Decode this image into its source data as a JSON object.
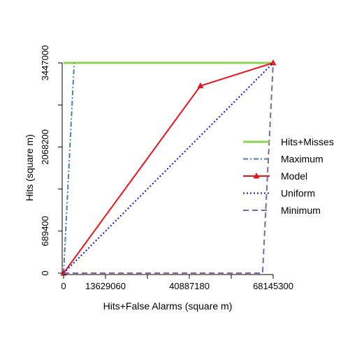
{
  "chart_data": {
    "type": "line",
    "title": "",
    "xlabel": "Hits+False Alarms (square m)",
    "ylabel": "Hits (square m)",
    "xlim": [
      0,
      68145300
    ],
    "ylim": [
      0,
      3447000
    ],
    "x_ticks": [
      0,
      13629060,
      40887180,
      68145300
    ],
    "x_tick_labels": [
      "0",
      "13629060",
      "40887180",
      "68145300"
    ],
    "x_tick_minor": [
      27258120,
      54516240
    ],
    "y_ticks": [
      0,
      689400,
      2068200,
      3447000
    ],
    "y_tick_labels": [
      "0",
      "689400",
      "2068200",
      "3447000"
    ],
    "y_tick_minor": [
      1378800,
      2757600
    ],
    "grid": false,
    "legend_position": "right",
    "series": [
      {
        "name": "Hits+Misses",
        "color": "#8fd14f",
        "style": "solid",
        "marker": "none",
        "points": [
          [
            0,
            3447000
          ],
          [
            68145300,
            3447000
          ]
        ]
      },
      {
        "name": "Maximum",
        "color": "#4a7fb5",
        "style": "dashdot",
        "marker": "none",
        "points": [
          [
            0,
            0
          ],
          [
            3447000,
            3447000
          ]
        ]
      },
      {
        "name": "Model",
        "color": "#e8141c",
        "style": "solid",
        "marker": "triangle",
        "points": [
          [
            0,
            0
          ],
          [
            44500000,
            3070000
          ],
          [
            68145300,
            3447000
          ]
        ]
      },
      {
        "name": "Uniform",
        "color": "#1010e0",
        "style": "dotted",
        "marker": "none",
        "points": [
          [
            0,
            0
          ],
          [
            68145300,
            3447000
          ]
        ]
      },
      {
        "name": "Minimum",
        "color": "#8064a2",
        "style": "dashed",
        "marker": "none",
        "points": [
          [
            0,
            0
          ],
          [
            64698300,
            0
          ],
          [
            68145300,
            3447000
          ]
        ]
      }
    ]
  }
}
